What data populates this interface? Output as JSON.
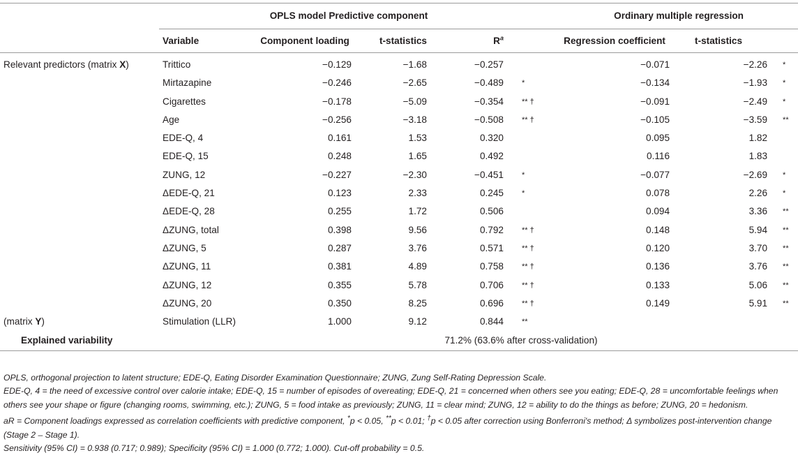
{
  "table": {
    "group_headers": {
      "opls": "OPLS model Predictive component",
      "omr": "Ordinary multiple regression"
    },
    "columns": {
      "variable": "Variable",
      "component_loading": "Component loading",
      "t_stat_opls": "t-statistics",
      "r_label": "R",
      "r_sup": "a",
      "regression_coefficient": "Regression coefficient",
      "t_stat_omr": "t-statistics"
    },
    "group_labels": {
      "x_prefix": "Relevant predictors (matrix ",
      "x_bold": "X",
      "x_suffix": ")",
      "y_prefix": "(matrix ",
      "y_bold": "Y",
      "y_suffix": ")"
    },
    "rows": [
      {
        "variable": "Trittico",
        "loading": "−0.129",
        "t1": "−1.68",
        "r": "−0.257",
        "sig1": "",
        "coef": "−0.071",
        "t2": "−2.26",
        "sig2": "*"
      },
      {
        "variable": "Mirtazapine",
        "loading": "−0.246",
        "t1": "−2.65",
        "r": "−0.489",
        "sig1": "*",
        "coef": "−0.134",
        "t2": "−1.93",
        "sig2": "*"
      },
      {
        "variable": "Cigarettes",
        "loading": "−0.178",
        "t1": "−5.09",
        "r": "−0.354",
        "sig1": "** †",
        "coef": "−0.091",
        "t2": "−2.49",
        "sig2": "*"
      },
      {
        "variable": "Age",
        "loading": "−0.256",
        "t1": "−3.18",
        "r": "−0.508",
        "sig1": "** †",
        "coef": "−0.105",
        "t2": "−3.59",
        "sig2": "**"
      },
      {
        "variable": "EDE-Q, 4",
        "loading": "0.161",
        "t1": "1.53",
        "r": "0.320",
        "sig1": "",
        "coef": "0.095",
        "t2": "1.82",
        "sig2": ""
      },
      {
        "variable": "EDE-Q, 15",
        "loading": "0.248",
        "t1": "1.65",
        "r": "0.492",
        "sig1": "",
        "coef": "0.116",
        "t2": "1.83",
        "sig2": ""
      },
      {
        "variable": "ZUNG, 12",
        "loading": "−0.227",
        "t1": "−2.30",
        "r": "−0.451",
        "sig1": "*",
        "coef": "−0.077",
        "t2": "−2.69",
        "sig2": "*"
      },
      {
        "variable": "ΔEDE-Q, 21",
        "loading": "0.123",
        "t1": "2.33",
        "r": "0.245",
        "sig1": "*",
        "coef": "0.078",
        "t2": "2.26",
        "sig2": "*"
      },
      {
        "variable": "ΔEDE-Q, 28",
        "loading": "0.255",
        "t1": "1.72",
        "r": "0.506",
        "sig1": "",
        "coef": "0.094",
        "t2": "3.36",
        "sig2": "**"
      },
      {
        "variable": "ΔZUNG, total",
        "loading": "0.398",
        "t1": "9.56",
        "r": "0.792",
        "sig1": "** †",
        "coef": "0.148",
        "t2": "5.94",
        "sig2": "**"
      },
      {
        "variable": "ΔZUNG, 5",
        "loading": "0.287",
        "t1": "3.76",
        "r": "0.571",
        "sig1": "** †",
        "coef": "0.120",
        "t2": "3.70",
        "sig2": "**"
      },
      {
        "variable": "ΔZUNG, 11",
        "loading": "0.381",
        "t1": "4.89",
        "r": "0.758",
        "sig1": "** †",
        "coef": "0.136",
        "t2": "3.76",
        "sig2": "**"
      },
      {
        "variable": "ΔZUNG, 12",
        "loading": "0.355",
        "t1": "5.78",
        "r": "0.706",
        "sig1": "** †",
        "coef": "0.133",
        "t2": "5.06",
        "sig2": "**"
      },
      {
        "variable": "ΔZUNG, 20",
        "loading": "0.350",
        "t1": "8.25",
        "r": "0.696",
        "sig1": "** †",
        "coef": "0.149",
        "t2": "5.91",
        "sig2": "**"
      }
    ],
    "y_row": {
      "variable": "Stimulation (LLR)",
      "loading": "1.000",
      "t1": "9.12",
      "r": "0.844",
      "sig1": "**"
    },
    "explained": {
      "label": "Explained variability",
      "value": "71.2% (63.6% after cross-validation)"
    }
  },
  "notes": {
    "abbrev": "OPLS, orthogonal projection to latent structure; EDE-Q, Eating Disorder Examination Questionnaire; ZUNG, Zung Self-Rating Depression Scale.",
    "items": "EDE-Q, 4 = the need of excessive control over calorie intake; EDE-Q, 15 = number of episodes of overeating; EDE-Q, 21 = concerned when others see you eating; EDE-Q, 28 = uncomfortable feelings when others see your shape or figure (changing rooms, swimming, etc.); ZUNG, 5 = food intake as previously; ZUNG, 11 = clear mind; ZUNG, 12 = ability to do the things as before; ZUNG, 20 = hedonism.",
    "ar_a": "aR = Component loadings expressed as correlation coefficients with predictive component, ",
    "ar_star": "*",
    "ar_b": "p < 0.05, ",
    "ar_dstar": "**",
    "ar_c": "p < 0.01; ",
    "ar_dagger": "†",
    "ar_d": "p < 0.05 after correction using Bonferroni's method; Δ symbolizes post-intervention change (Stage 2 – Stage 1).",
    "sensitivity": "Sensitivity (95% CI) = 0.938 (0.717; 0.989); Specificity (95% CI) = 1.000 (0.772; 1.000). Cut-off probability = 0.5."
  }
}
